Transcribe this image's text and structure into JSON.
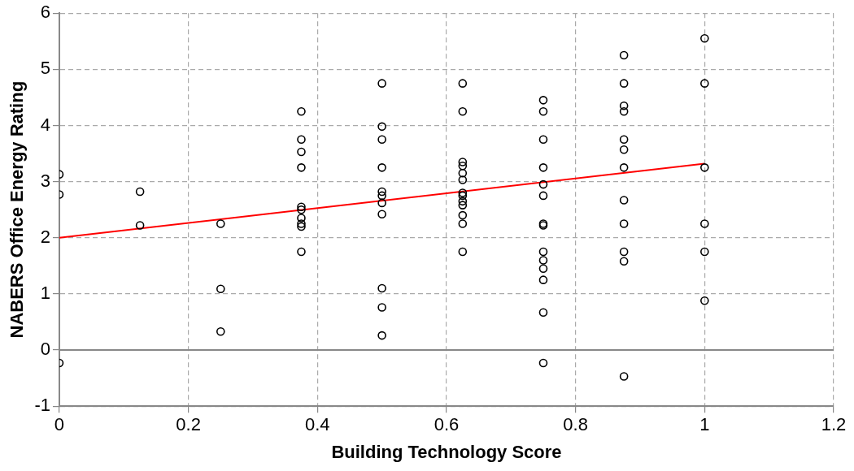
{
  "chart_data": {
    "type": "scatter",
    "xlabel": "Building Technology Score",
    "ylabel": "NABERS Office Energy Rating",
    "xlim": [
      0,
      1.2
    ],
    "xticks": [
      0,
      0.2,
      0.4,
      0.6,
      0.8,
      1,
      1.2
    ],
    "ylim": [
      -1,
      6
    ],
    "yticks": [
      -1,
      0,
      1,
      2,
      3,
      4,
      5,
      6
    ],
    "grid": true,
    "legend": false,
    "ref_lines": [
      {
        "axis": "y",
        "value": 0,
        "color": "#888888",
        "line_style": "solid"
      }
    ],
    "marker": "circle",
    "series": [
      {
        "color": "#000000",
        "x": [
          0,
          0,
          0,
          0.125,
          0.125,
          0.25,
          0.25,
          0.25,
          0.375,
          0.375,
          0.375,
          0.375,
          0.375,
          0.375,
          0.375,
          0.375,
          0.375,
          0.375,
          0.5,
          0.5,
          0.5,
          0.5,
          0.5,
          0.5,
          0.5,
          0.5,
          0.5,
          0.5,
          0.5,
          0.625,
          0.625,
          0.625,
          0.625,
          0.625,
          0.625,
          0.625,
          0.625,
          0.625,
          0.625,
          0.625,
          0.625,
          0.625,
          0.75,
          0.75,
          0.75,
          0.75,
          0.75,
          0.75,
          0.75,
          0.75,
          0.75,
          0.75,
          0.75,
          0.75,
          0.75,
          0.75,
          0.875,
          0.875,
          0.875,
          0.875,
          0.875,
          0.875,
          0.875,
          0.875,
          0.875,
          0.875,
          0.875,
          0.875,
          1,
          1,
          1,
          1,
          1,
          1
        ],
        "values": [
          3.13,
          2.77,
          -0.23,
          2.82,
          2.22,
          2.25,
          1.09,
          0.33,
          4.25,
          3.75,
          3.53,
          3.25,
          2.55,
          2.5,
          2.35,
          2.25,
          2.2,
          1.75,
          4.75,
          3.98,
          3.75,
          3.25,
          2.82,
          2.75,
          2.62,
          2.42,
          1.1,
          0.76,
          0.26,
          4.75,
          4.25,
          3.35,
          3.28,
          3.15,
          3.03,
          2.8,
          2.75,
          2.65,
          2.58,
          2.4,
          2.25,
          1.75,
          4.45,
          4.25,
          3.75,
          3.25,
          2.95,
          2.75,
          2.25,
          2.22,
          1.75,
          1.6,
          1.45,
          1.25,
          0.67,
          -0.23,
          5.25,
          4.75,
          4.35,
          4.25,
          3.75,
          3.57,
          3.25,
          2.67,
          2.25,
          1.75,
          1.58,
          -0.47,
          5.55,
          4.75,
          3.25,
          2.25,
          1.75,
          0.88
        ]
      },
      {
        "type": "line",
        "color": "#ff0000",
        "marker": "none",
        "x": [
          0,
          1
        ],
        "values": [
          2.0,
          3.32
        ]
      }
    ]
  }
}
